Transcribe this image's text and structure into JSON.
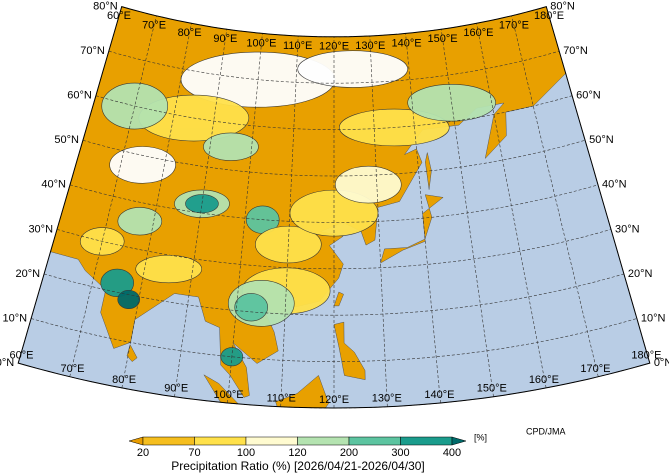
{
  "map": {
    "lon_labels": [
      "60°E",
      "70°E",
      "80°E",
      "90°E",
      "100°E",
      "110°E",
      "120°E",
      "130°E",
      "140°E",
      "150°E",
      "160°E",
      "170°E",
      "180°E"
    ],
    "lat_labels": [
      "0°N",
      "10°N",
      "20°N",
      "30°N",
      "40°N",
      "50°N",
      "60°N",
      "70°N",
      "80°N"
    ]
  },
  "legend": {
    "colors": [
      "#e89c00",
      "#f5be1e",
      "#ffe14a",
      "#fffbd0",
      "#b4e3b0",
      "#5cc4a0",
      "#1a9c8c",
      "#006a6a"
    ],
    "ticks": [
      20,
      70,
      100,
      120,
      200,
      300,
      400
    ],
    "unit": "[%]",
    "label": "Precipitation Ratio (%) [2026/04/21-2026/04/30]"
  },
  "credit": "CPD/JMA"
}
